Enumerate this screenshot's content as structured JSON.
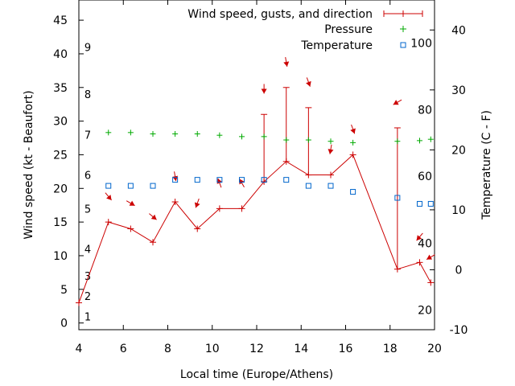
{
  "chart_data": {
    "type": "line",
    "xlabel": "Local time (Europe/Athens)",
    "ylabel": "Wind speed (kt - Beaufort)",
    "y2label": "Temperature (C - F)",
    "xlim": [
      4,
      20
    ],
    "ylim": [
      -1,
      48
    ],
    "y2lim": [
      -10,
      45
    ],
    "x_ticks": [
      4,
      6,
      8,
      10,
      12,
      14,
      16,
      18,
      20
    ],
    "y_ticks": [
      0,
      5,
      10,
      15,
      20,
      25,
      30,
      35,
      40,
      45
    ],
    "y2_ticks": [
      -10,
      0,
      10,
      20,
      30,
      40
    ],
    "beaufort_labels": [
      {
        "label": "1",
        "y": 1.0
      },
      {
        "label": "2",
        "y": 4.0
      },
      {
        "label": "3",
        "y": 7.0
      },
      {
        "label": "4",
        "y": 11.0
      },
      {
        "label": "5",
        "y": 17.0
      },
      {
        "label": "6",
        "y": 22.0
      },
      {
        "label": "7",
        "y": 28.0
      },
      {
        "label": "8",
        "y": 34.0
      },
      {
        "label": "9",
        "y": 41.0
      }
    ],
    "fahrenheit_labels": [
      {
        "label": "20",
        "y2": -6.7
      },
      {
        "label": "40",
        "y2": 4.4
      },
      {
        "label": "60",
        "y2": 15.6
      },
      {
        "label": "80",
        "y2": 26.7
      },
      {
        "label": "100",
        "y2": 37.8
      }
    ],
    "legend": {
      "placement": "top-right",
      "entries": [
        "Wind speed, gusts, and direction",
        "Pressure",
        "Temperature"
      ]
    },
    "series": [
      {
        "name": "Wind speed, gusts, and direction",
        "color": "#cc0000",
        "x": [
          4.0,
          5.33,
          6.33,
          7.33,
          8.33,
          9.33,
          10.33,
          11.33,
          12.33,
          13.33,
          14.33,
          15.33,
          16.33,
          18.33,
          19.33,
          19.83
        ],
        "y": [
          3,
          15,
          14,
          12,
          18,
          14,
          17,
          17,
          21,
          24,
          22,
          22,
          25,
          8,
          9,
          6
        ],
        "gusts": [
          null,
          null,
          null,
          null,
          null,
          null,
          null,
          null,
          31,
          35,
          32,
          null,
          null,
          29,
          null,
          null
        ],
        "direction_deg": [
          null,
          320,
          300,
          310,
          350,
          20,
          160,
          150,
          0,
          350,
          340,
          10,
          340,
          60,
          40,
          60
        ]
      },
      {
        "name": "Pressure",
        "color": "#00aa00",
        "x": [
          5.33,
          6.33,
          7.33,
          8.33,
          9.33,
          10.33,
          11.33,
          12.33,
          13.33,
          14.33,
          15.33,
          16.33,
          18.33,
          19.33,
          19.83
        ],
        "y": [
          28.3,
          28.3,
          28.1,
          28.1,
          28.1,
          27.9,
          27.7,
          27.7,
          27.2,
          27.2,
          27.0,
          26.8,
          27.0,
          27.1,
          27.3
        ]
      },
      {
        "name": "Temperature",
        "color": "#0066cc",
        "x": [
          5.33,
          6.33,
          7.33,
          8.33,
          9.33,
          10.33,
          11.33,
          12.33,
          13.33,
          14.33,
          15.33,
          16.33,
          18.33,
          19.33,
          19.83
        ],
        "y2": [
          14,
          14,
          14,
          15,
          15,
          15,
          15,
          15,
          15,
          14,
          14,
          13,
          12,
          11,
          11
        ]
      }
    ]
  }
}
